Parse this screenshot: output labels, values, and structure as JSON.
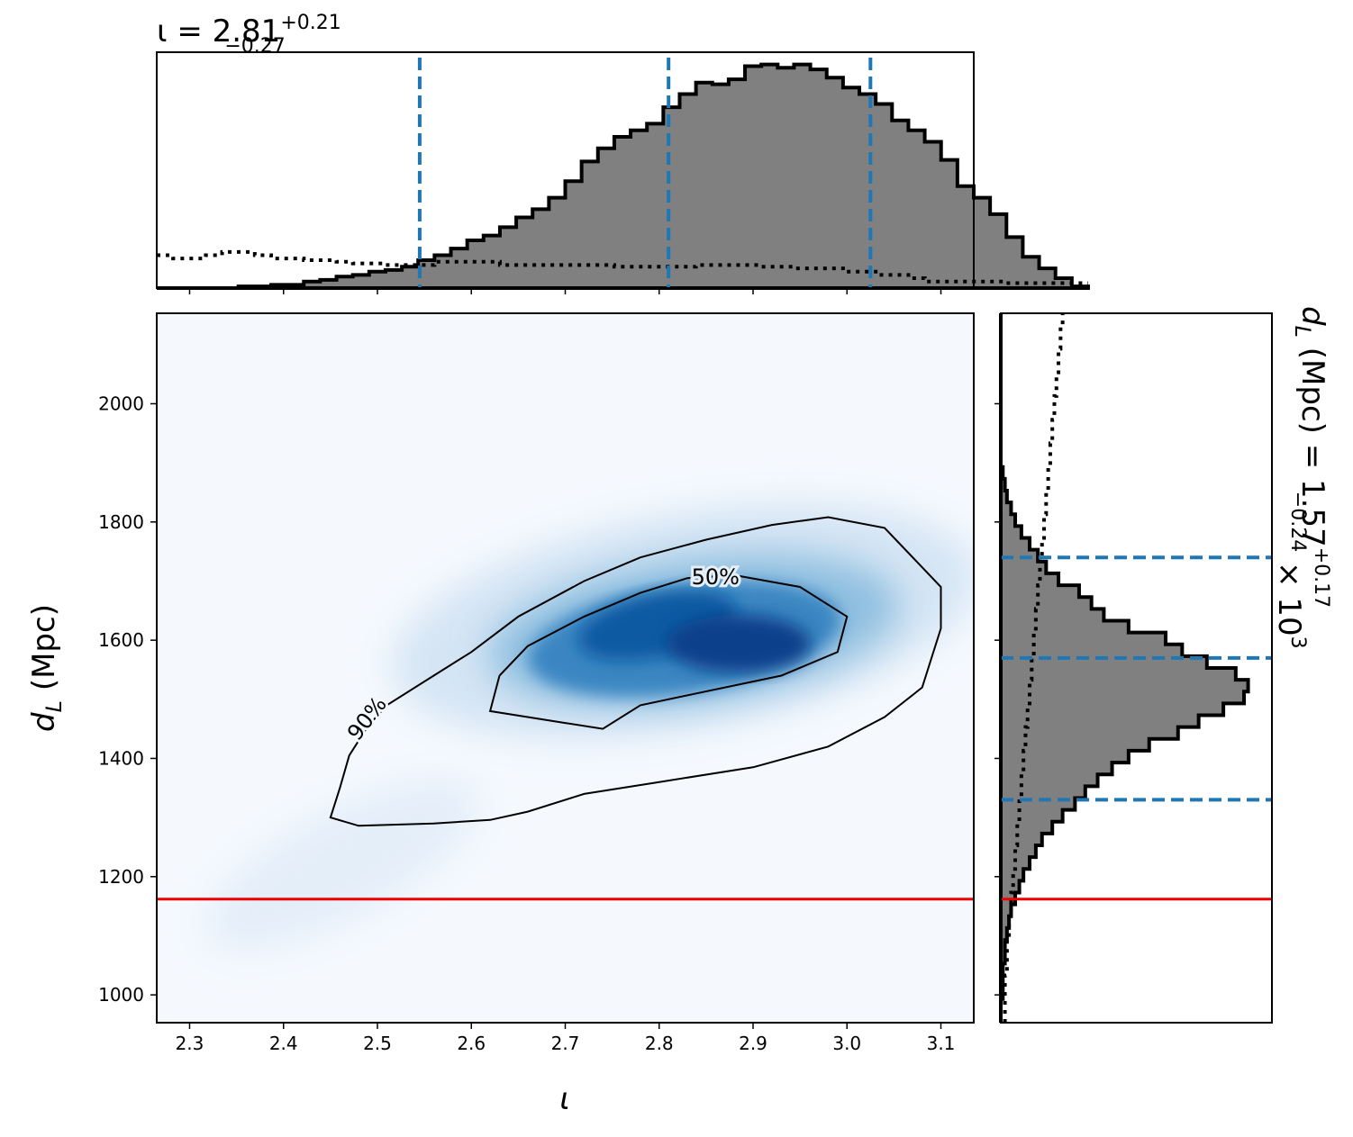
{
  "chart_data": {
    "type": "corner",
    "top_panel": {
      "title": "ι = 2.81",
      "title_sup": "+0.21",
      "title_sub": "−0.27",
      "xlim": [
        2.265,
        3.135
      ],
      "bins": {
        "edges_start": 2.265,
        "bin_width": 0.0174,
        "hist": [
          0,
          0,
          0,
          0,
          0,
          1,
          1,
          2,
          2,
          4,
          5,
          7,
          8,
          10,
          11,
          13,
          17,
          20,
          24,
          29,
          32,
          37,
          43,
          48,
          55,
          65,
          77,
          85,
          92,
          96,
          100,
          110,
          118,
          125,
          124,
          127,
          135,
          136,
          134,
          136,
          133,
          128,
          122,
          118,
          112,
          102,
          96,
          89,
          78,
          62,
          55,
          45,
          31,
          19,
          12,
          6,
          1
        ],
        "prior": [
          20,
          18,
          18,
          20,
          22,
          22,
          20,
          18,
          18,
          17,
          17,
          16,
          15,
          15,
          14,
          14,
          14,
          16,
          16,
          16,
          16,
          14,
          14,
          14,
          14,
          14,
          14,
          14,
          13,
          13,
          13,
          13,
          13,
          14,
          14,
          14,
          14,
          13,
          13,
          12,
          12,
          12,
          10,
          10,
          8,
          8,
          6,
          4,
          4,
          4,
          4,
          4,
          3,
          3,
          3,
          3,
          3
        ]
      },
      "quantile_lines": [
        2.545,
        2.81,
        3.025
      ]
    },
    "main_panel": {
      "type": "heatmap",
      "xlabel": "ι",
      "ylabel": "d",
      "ylabel_sub": "L",
      "ylabel_rest": " (Mpc)",
      "xlim": [
        2.265,
        3.135
      ],
      "ylim": [
        953,
        2153
      ],
      "xticks": [
        "2.3",
        "2.4",
        "2.5",
        "2.6",
        "2.7",
        "2.8",
        "2.9",
        "3.0",
        "3.1"
      ],
      "yticks": [
        "1000",
        "1200",
        "1400",
        "1600",
        "1800",
        "2000"
      ],
      "colormap": "Blues",
      "injection_line_y": 1162,
      "injection_color": "#ee0000",
      "contours": [
        {
          "label": "90%",
          "points": [
            [
              2.47,
              1405
            ],
            [
              2.49,
              1455
            ],
            [
              2.51,
              1490
            ],
            [
              2.56,
              1540
            ],
            [
              2.6,
              1580
            ],
            [
              2.65,
              1640
            ],
            [
              2.72,
              1700
            ],
            [
              2.78,
              1740
            ],
            [
              2.85,
              1770
            ],
            [
              2.92,
              1795
            ],
            [
              2.98,
              1808
            ],
            [
              3.04,
              1790
            ],
            [
              3.1,
              1690
            ],
            [
              3.1,
              1620
            ],
            [
              3.08,
              1520
            ],
            [
              3.04,
              1470
            ],
            [
              2.98,
              1420
            ],
            [
              2.9,
              1385
            ],
            [
              2.8,
              1360
            ],
            [
              2.72,
              1340
            ],
            [
              2.66,
              1310
            ],
            [
              2.62,
              1296
            ],
            [
              2.56,
              1290
            ],
            [
              2.48,
              1286
            ],
            [
              2.45,
              1300
            ],
            [
              2.46,
              1350
            ],
            [
              2.47,
              1405
            ]
          ]
        },
        {
          "label": "50%",
          "points": [
            [
              2.63,
              1540
            ],
            [
              2.66,
              1590
            ],
            [
              2.72,
              1640
            ],
            [
              2.78,
              1680
            ],
            [
              2.83,
              1705
            ],
            [
              2.88,
              1710
            ],
            [
              2.95,
              1690
            ],
            [
              3.0,
              1640
            ],
            [
              2.99,
              1580
            ],
            [
              2.93,
              1540
            ],
            [
              2.84,
              1510
            ],
            [
              2.78,
              1490
            ],
            [
              2.74,
              1450
            ],
            [
              2.7,
              1460
            ],
            [
              2.62,
              1480
            ],
            [
              2.63,
              1540
            ]
          ]
        }
      ]
    },
    "side_panel": {
      "title": "d",
      "title_sub": "L",
      "title_rest": " (Mpc) = 1.57",
      "title_sup": "+0.17",
      "title_sub2": "−0.24",
      "title_tail": " × 10",
      "title_exp": "3",
      "ylim": [
        953,
        2153
      ],
      "bins": {
        "edges_start": 953,
        "bin_width": 20,
        "hist": [
          0,
          0,
          1,
          1,
          1,
          2,
          2,
          3,
          4,
          5,
          7,
          9,
          11,
          14,
          17,
          20,
          25,
          30,
          36,
          41,
          47,
          54,
          62,
          72,
          86,
          96,
          108,
          118,
          120,
          114,
          100,
          88,
          80,
          62,
          50,
          44,
          38,
          28,
          22,
          18,
          14,
          10,
          7,
          5,
          3,
          2,
          1,
          0,
          0,
          0,
          0,
          0,
          0,
          0,
          0,
          0,
          0,
          0,
          0,
          0
        ],
        "prior": [
          2,
          2,
          2,
          2,
          3,
          3,
          3,
          4,
          4,
          5,
          5,
          6,
          6,
          7,
          7,
          8,
          8,
          9,
          9,
          10,
          10,
          11,
          11,
          12,
          12,
          13,
          13,
          14,
          14,
          15,
          15,
          16,
          16,
          17,
          17,
          18,
          18,
          19,
          19,
          20,
          20,
          21,
          21,
          22,
          22,
          23,
          23,
          24,
          24,
          25,
          25,
          26,
          26,
          27,
          27,
          28,
          28,
          29,
          29,
          30
        ]
      },
      "quantile_lines": [
        1330,
        1570,
        1740
      ]
    }
  }
}
